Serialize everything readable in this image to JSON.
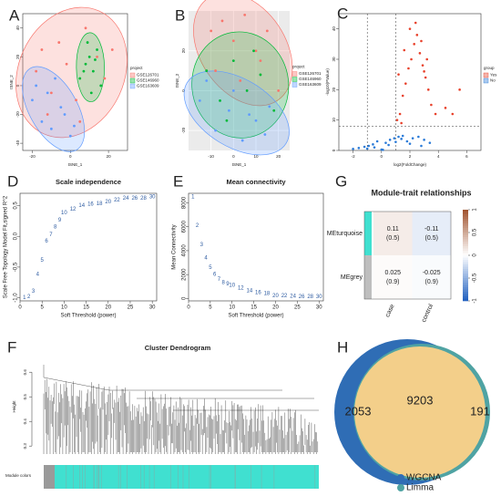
{
  "chart_data": [
    {
      "panel": "A",
      "type": "scatter",
      "xlabel": "tSNE_1",
      "ylabel": "tSNE_2",
      "xlim": [
        -25,
        30
      ],
      "ylim": [
        -45,
        50
      ],
      "xticks": [
        -20,
        0,
        20
      ],
      "yticks": [
        -40,
        -20,
        0,
        20,
        40
      ],
      "legend_title": "project",
      "legend": "right",
      "ellipses": true,
      "frame": true,
      "series": [
        {
          "name": "GSE126701",
          "color": "#f8766d",
          "x": [
            -18,
            -15,
            -10,
            -6,
            -2,
            3,
            8,
            14,
            18,
            22,
            -12,
            5
          ],
          "values": [
            10,
            25,
            -5,
            30,
            15,
            -10,
            40,
            20,
            5,
            25,
            -20,
            -25
          ]
        },
        {
          "name": "GSE146960",
          "color": "#00ba38",
          "x": [
            5,
            8,
            10,
            12,
            14,
            16,
            9,
            11,
            7,
            13
          ],
          "values": [
            5,
            15,
            20,
            10,
            25,
            0,
            30,
            -5,
            10,
            18
          ]
        },
        {
          "name": "GSE163609",
          "color": "#619cff",
          "x": [
            -20,
            -15,
            -10,
            -5,
            0,
            -8,
            -3,
            -12,
            2,
            -18
          ],
          "values": [
            -10,
            -25,
            -30,
            -15,
            -35,
            5,
            -20,
            -5,
            -28,
            0
          ]
        }
      ]
    },
    {
      "panel": "B",
      "type": "scatter",
      "xlabel": "tSNE_1",
      "ylabel": "tSNE_2",
      "xlim": [
        -20,
        25
      ],
      "ylim": [
        -30,
        40
      ],
      "xticks": [
        -10,
        0,
        10,
        20
      ],
      "yticks": [
        -20,
        0,
        20
      ],
      "legend_title": "project",
      "legend": "right",
      "ellipses": true,
      "grid": true,
      "background": "#ebebeb",
      "series": [
        {
          "name": "GSE126701",
          "color": "#f8766d",
          "x": [
            -10,
            -5,
            0,
            5,
            10,
            15,
            -8,
            3,
            12,
            20
          ],
          "values": [
            30,
            35,
            25,
            38,
            20,
            30,
            10,
            5,
            15,
            0
          ]
        },
        {
          "name": "GSE146960",
          "color": "#00ba38",
          "x": [
            -12,
            -6,
            0,
            6,
            12,
            18,
            -3,
            9
          ],
          "values": [
            10,
            -5,
            15,
            0,
            8,
            -10,
            -15,
            20
          ]
        },
        {
          "name": "GSE163609",
          "color": "#619cff",
          "x": [
            -15,
            -8,
            -2,
            4,
            10,
            16,
            -12,
            0,
            7,
            14
          ],
          "values": [
            -5,
            -20,
            -10,
            -25,
            -15,
            -8,
            5,
            0,
            -12,
            -22
          ]
        }
      ]
    },
    {
      "panel": "C",
      "type": "scatter",
      "xlabel": "log2(FoldChange)",
      "ylabel": "-log10(PValue)",
      "xlim": [
        -3,
        7
      ],
      "ylim": [
        0,
        45
      ],
      "xticks": [
        -2,
        0,
        2,
        4,
        6
      ],
      "yticks": [
        0,
        10,
        20,
        30,
        40
      ],
      "legend_title": "group",
      "legend": "right",
      "frame": true,
      "vlines": [
        -1,
        1
      ],
      "hline": 8,
      "point_size": 1.3,
      "series": [
        {
          "name": "Yes",
          "color": "#e8412b",
          "x": [
            1.1,
            1.3,
            1.5,
            1.7,
            1.9,
            2.1,
            2.3,
            2.5,
            2.7,
            2.9,
            3.1,
            3.3,
            3.5,
            1.2,
            1.6,
            2.0,
            2.4,
            2.8,
            3.2,
            1.4,
            4.5,
            5.0,
            5.5,
            3.0,
            3.8
          ],
          "values": [
            10,
            12,
            18,
            22,
            27,
            30,
            35,
            38,
            32,
            28,
            24,
            20,
            15,
            25,
            33,
            40,
            42,
            36,
            30,
            9,
            14,
            12,
            20,
            26,
            12
          ]
        },
        {
          "name": "No",
          "color": "#2b7bd8",
          "x": [
            -2.0,
            -1.6,
            -1.2,
            -0.9,
            -0.6,
            -0.3,
            0,
            0.3,
            0.6,
            0.9,
            1.2,
            1.5,
            1.8,
            2.2,
            2.6,
            3.0,
            -1.0,
            -0.5,
            0.1,
            0.5,
            1.0,
            1.4,
            2.0,
            2.8,
            3.4
          ],
          "values": [
            0.5,
            0.8,
            1.2,
            1.5,
            2,
            3,
            0.3,
            2.5,
            3.5,
            4,
            4.5,
            4.8,
            3,
            4,
            4.5,
            3.5,
            0.6,
            1,
            0.2,
            1.8,
            2.8,
            3.8,
            2.2,
            1.5,
            2.5
          ]
        }
      ]
    },
    {
      "panel": "D",
      "type": "scatter",
      "title": "Scale independence",
      "xlabel": "Soft Threshold (power)",
      "ylabel": "Scale Free Topology Model Fit,signed R^2",
      "xlim": [
        0,
        31
      ],
      "ylim": [
        -1.05,
        0.7
      ],
      "xticks": [
        0,
        5,
        10,
        15,
        20,
        25,
        30
      ],
      "yticks": [
        {
          "value": -1,
          "label": "-1.0"
        },
        -0.5,
        {
          "value": 0,
          "label": "0.0"
        },
        0.5
      ],
      "frame": true,
      "point_labels": true,
      "color": "#2c5aa0",
      "x": [
        1,
        2,
        3,
        4,
        5,
        6,
        7,
        8,
        9,
        10,
        12,
        14,
        16,
        18,
        20,
        22,
        24,
        26,
        28,
        30
      ],
      "values": [
        -1.0,
        -0.98,
        -0.89,
        -0.62,
        -0.39,
        -0.08,
        0.03,
        0.15,
        0.26,
        0.38,
        0.44,
        0.5,
        0.52,
        0.53,
        0.56,
        0.59,
        0.62,
        0.62,
        0.62,
        0.64
      ]
    },
    {
      "panel": "E",
      "type": "scatter",
      "title": "Mean connectivity",
      "xlabel": "Soft Threshold (power)",
      "ylabel": "Mean Connectivity",
      "xlim": [
        0,
        31
      ],
      "ylim": [
        -200,
        8800
      ],
      "xticks": [
        0,
        5,
        10,
        15,
        20,
        25,
        30
      ],
      "yticks": [
        0,
        2000,
        4000,
        6000,
        8000
      ],
      "frame": true,
      "point_labels": true,
      "color": "#2c5aa0",
      "x": [
        1,
        2,
        3,
        4,
        5,
        6,
        7,
        8,
        9,
        10,
        12,
        14,
        16,
        18,
        20,
        22,
        24,
        26,
        28,
        30
      ],
      "values": [
        8500,
        6100,
        4500,
        3400,
        2600,
        2000,
        1600,
        1350,
        1200,
        1100,
        870,
        630,
        480,
        400,
        240,
        230,
        180,
        160,
        150,
        150
      ]
    },
    {
      "panel": "G",
      "type": "heatmap",
      "title": "Module-trait relationships",
      "rows": [
        "MEturquoise",
        "MEgrey"
      ],
      "columns": [
        "case",
        "control"
      ],
      "row_colors": [
        "#40e0d0",
        "#bebebe"
      ],
      "values": [
        [
          0.11,
          -0.11
        ],
        [
          0.025,
          -0.025
        ]
      ],
      "pvalues": [
        [
          0.5,
          0.5
        ],
        [
          0.9,
          0.9
        ]
      ],
      "pvalue_labels": [
        [
          "(0.5)",
          "(0.5)"
        ],
        [
          "(0.9)",
          "(0.9)"
        ]
      ],
      "zlim": [
        -1,
        1
      ],
      "zticks": [
        1,
        0.5,
        0,
        -0.5,
        -1
      ],
      "low_color": "#1f5fbf",
      "mid_color": "#ffffff",
      "high_color": "#a0522d"
    },
    {
      "panel": "F",
      "type": "dendrogram",
      "title": "Cluster Dendrogram",
      "ylabel": "Height",
      "ylim": [
        0.26,
        0.66
      ],
      "yticks": [
        0.3,
        0.4,
        0.5,
        0.6
      ],
      "module_label": "Module colors",
      "module_colors": [
        "#9a9a9a",
        "#40e0d0"
      ]
    },
    {
      "panel": "H",
      "type": "venn",
      "sets": [
        {
          "name": "WGCNA",
          "color": "#2f6db5"
        },
        {
          "name": "Limma",
          "color": "#4fa3a3"
        }
      ],
      "overlap_color": "#f3cf8a",
      "values": [
        2053,
        9203,
        191
      ]
    }
  ]
}
